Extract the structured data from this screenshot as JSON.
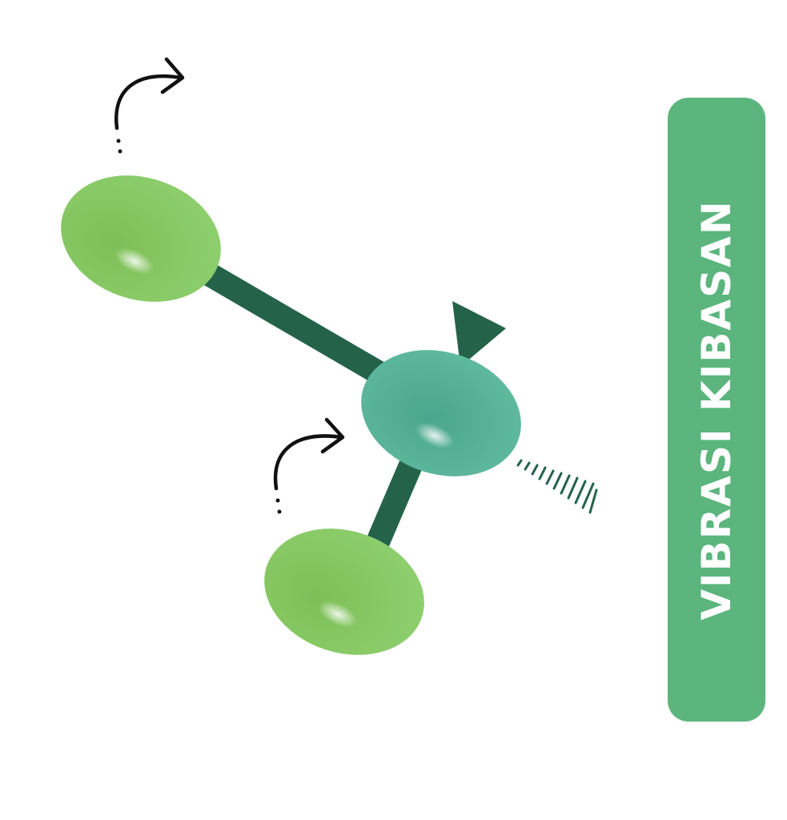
{
  "title": "VIBRASI KIBASAN",
  "colors": {
    "banner": "#5bb57d",
    "bond": "#24634a",
    "atom_outer": "#84c767",
    "atom_center": "#55b298",
    "arrow": "#111111",
    "hatch": "#24634a"
  },
  "diagram": {
    "atoms": [
      {
        "id": "outer-atom-top",
        "role": "outer"
      },
      {
        "id": "central-atom",
        "role": "central"
      },
      {
        "id": "outer-atom-bottom",
        "role": "outer"
      }
    ],
    "arrows": [
      {
        "id": "rotation-arrow-top",
        "direction": "clockwise"
      },
      {
        "id": "rotation-arrow-bottom",
        "direction": "clockwise"
      }
    ],
    "bonds": [
      "bond-top",
      "bond-bottom"
    ],
    "stereo": [
      "wedge-bond",
      "hashed-bond"
    ]
  }
}
